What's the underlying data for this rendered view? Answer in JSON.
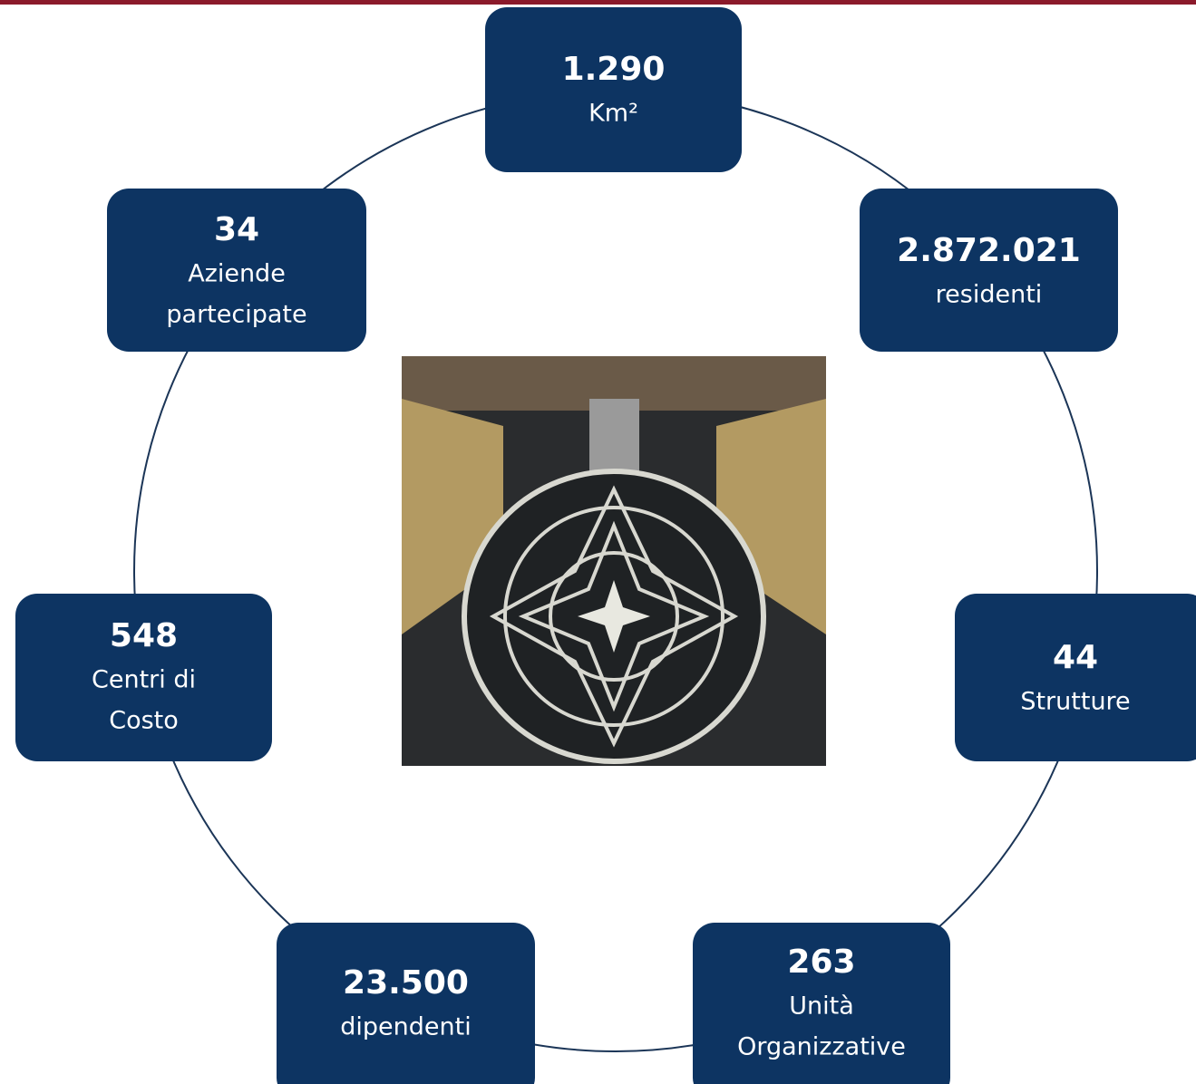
{
  "nodes": [
    {
      "value": "1.290",
      "lines": [
        "Km²"
      ]
    },
    {
      "value": "2.872.021",
      "lines": [
        "residenti"
      ]
    },
    {
      "value": "44",
      "lines": [
        "Strutture"
      ]
    },
    {
      "value": "263",
      "lines": [
        "Unità",
        "Organizzative"
      ]
    },
    {
      "value": "23.500",
      "lines": [
        "dipendenti"
      ]
    },
    {
      "value": "548",
      "lines": [
        "Centri di",
        "Costo"
      ]
    },
    {
      "value": "34",
      "lines": [
        "Aziende",
        "partecipate"
      ]
    }
  ]
}
